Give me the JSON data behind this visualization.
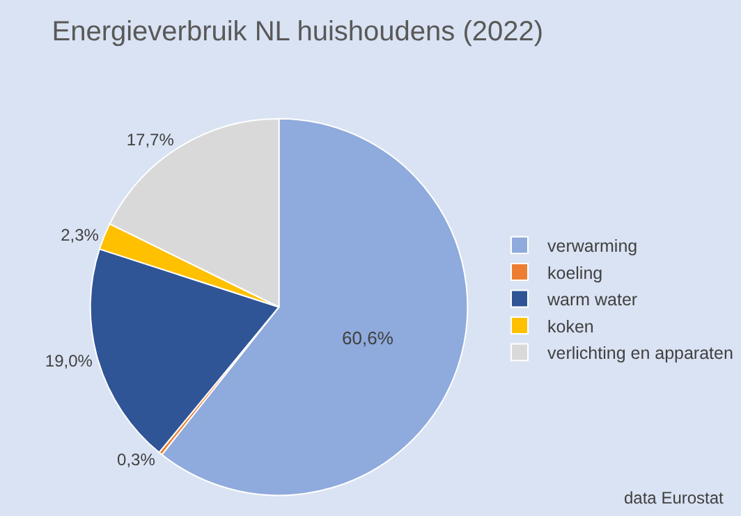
{
  "chart_data": {
    "type": "pie",
    "title": "Energieverbruik NL huishoudens (2022)",
    "categories": [
      "verwarming",
      "koeling",
      "warm water",
      "koken",
      "verlichting en apparaten"
    ],
    "values": [
      60.6,
      0.3,
      19.0,
      2.3,
      17.7
    ],
    "value_labels": [
      "60,6%",
      "0,3%",
      "19,0%",
      "2,3%",
      "17,7%"
    ],
    "colors": [
      "#8faadc",
      "#ed7d31",
      "#2f5597",
      "#ffc000",
      "#d9d9d9"
    ],
    "legend": "right",
    "annotations": [
      "data Eurostat"
    ]
  }
}
